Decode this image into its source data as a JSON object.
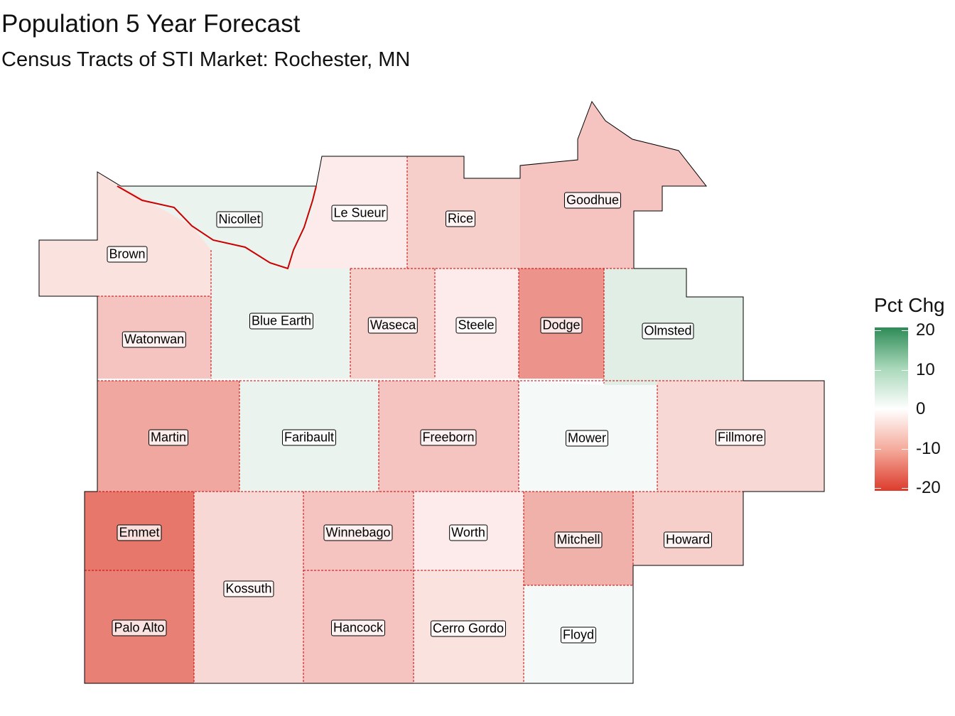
{
  "title": "Population 5 Year Forecast",
  "subtitle": "Census Tracts of STI Market: Rochester, MN",
  "legend": {
    "title": "Pct Chg",
    "ticks": [
      "20",
      "10",
      "0",
      "-10",
      "-20"
    ],
    "range": [
      -20,
      20
    ],
    "low_color": "#dc3b2c",
    "mid_color": "#ffffff",
    "high_color": "#2e8b57"
  },
  "counties": [
    {
      "name": "Brown",
      "pct": -3
    },
    {
      "name": "Nicollet",
      "pct": 2
    },
    {
      "name": "Le Sueur",
      "pct": -2
    },
    {
      "name": "Rice",
      "pct": -5
    },
    {
      "name": "Goodhue",
      "pct": -6
    },
    {
      "name": "Watonwan",
      "pct": -6
    },
    {
      "name": "Blue Earth",
      "pct": 2
    },
    {
      "name": "Waseca",
      "pct": -5
    },
    {
      "name": "Steele",
      "pct": -2
    },
    {
      "name": "Dodge",
      "pct": -11
    },
    {
      "name": "Olmsted",
      "pct": 3
    },
    {
      "name": "Martin",
      "pct": -9
    },
    {
      "name": "Faribault",
      "pct": 2
    },
    {
      "name": "Freeborn",
      "pct": -6
    },
    {
      "name": "Mower",
      "pct": 1
    },
    {
      "name": "Fillmore",
      "pct": -4
    },
    {
      "name": "Emmet",
      "pct": -14
    },
    {
      "name": "Kossuth",
      "pct": -4
    },
    {
      "name": "Winnebago",
      "pct": -6
    },
    {
      "name": "Worth",
      "pct": -2
    },
    {
      "name": "Mitchell",
      "pct": -8
    },
    {
      "name": "Howard",
      "pct": -5
    },
    {
      "name": "Palo Alto",
      "pct": -13
    },
    {
      "name": "Hancock",
      "pct": -6
    },
    {
      "name": "Cerro Gordo",
      "pct": -3
    },
    {
      "name": "Floyd",
      "pct": 1
    }
  ]
}
